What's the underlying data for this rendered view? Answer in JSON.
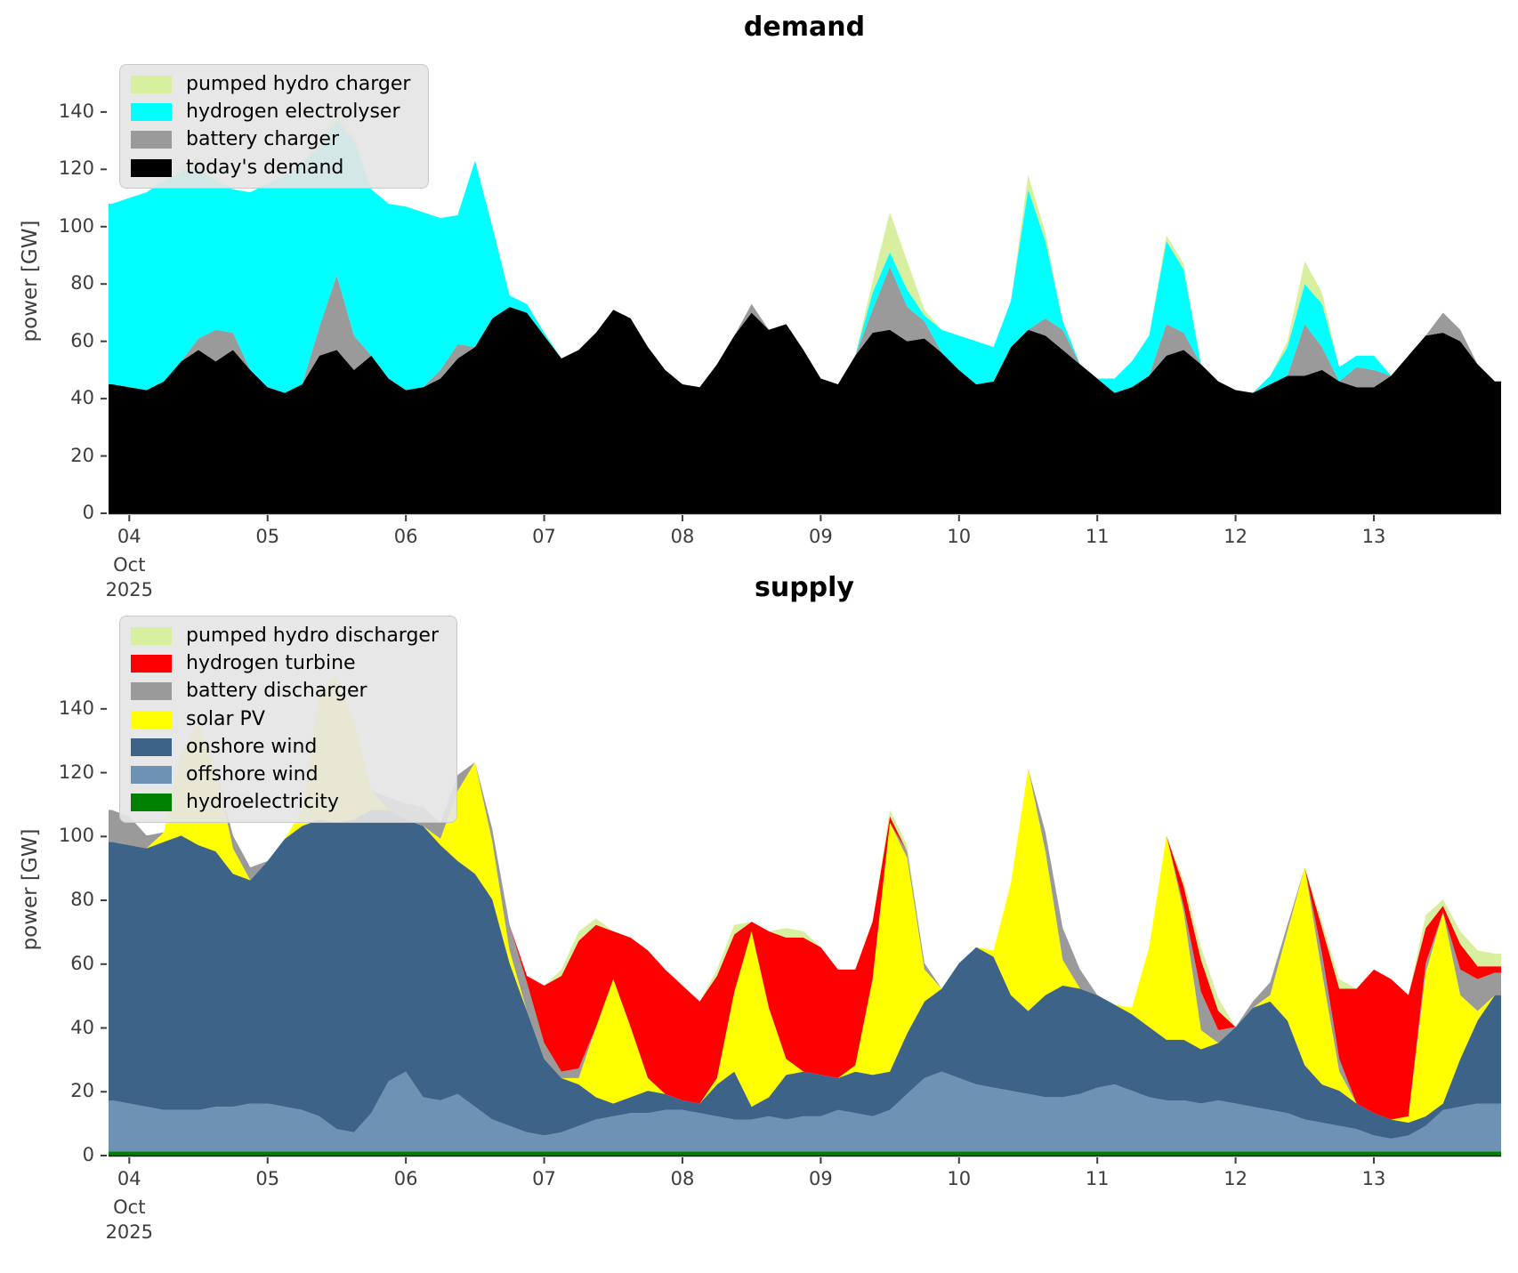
{
  "figure": {
    "background": "#ffffff",
    "text_color": "#3d3d3d",
    "month_label": "Oct",
    "year_label": "2025"
  },
  "chart_data": [
    {
      "id": "demand",
      "type": "area",
      "stacked": true,
      "title": "demand",
      "ylabel": "power [GW]",
      "xlabel": "",
      "grid": false,
      "legend_position": "upper left",
      "xlim": [
        3.85,
        13.92
      ],
      "ylim": [
        0,
        162
      ],
      "y_ticks": [
        0,
        20,
        40,
        60,
        80,
        100,
        120,
        140
      ],
      "x_ticks": [
        {
          "day": 4,
          "label": "04"
        },
        {
          "day": 5,
          "label": "05"
        },
        {
          "day": 6,
          "label": "06"
        },
        {
          "day": 7,
          "label": "07"
        },
        {
          "day": 8,
          "label": "08"
        },
        {
          "day": 9,
          "label": "09"
        },
        {
          "day": 10,
          "label": "10"
        },
        {
          "day": 11,
          "label": "11"
        },
        {
          "day": 12,
          "label": "12"
        },
        {
          "day": 13,
          "label": "13"
        }
      ],
      "x_points": {
        "start": 3.875,
        "step": 0.125,
        "count": 81,
        "unit": "day of October 2025"
      },
      "legend": [
        {
          "name": "pumped hydro charger",
          "color": "#d8ef9f"
        },
        {
          "name": "hydrogen electrolyser",
          "color": "#00ffff"
        },
        {
          "name": "battery charger",
          "color": "#9a9a9a"
        },
        {
          "name": "today's demand",
          "color": "#000000"
        }
      ],
      "series": [
        {
          "name": "today's demand",
          "color": "#000000",
          "values": [
            45,
            44,
            43,
            46,
            53,
            57,
            53,
            57,
            50,
            44,
            42,
            45,
            55,
            57,
            50,
            55,
            47,
            43,
            44,
            47,
            54,
            58,
            68,
            72,
            70,
            62,
            54,
            57,
            63,
            71,
            68,
            58,
            50,
            45,
            44,
            52,
            62,
            70,
            64,
            66,
            57,
            47,
            45,
            55,
            63,
            64,
            60,
            61,
            56,
            50,
            45,
            46,
            58,
            64,
            62,
            57,
            52,
            47,
            42,
            44,
            48,
            55,
            57,
            52,
            46,
            43,
            42,
            45,
            48,
            48,
            50,
            46,
            44,
            44,
            48,
            55,
            62,
            63,
            60,
            52,
            46
          ]
        },
        {
          "name": "battery charger",
          "color": "#9a9a9a",
          "values": [
            0,
            0,
            0,
            0,
            0,
            4,
            11,
            6,
            0,
            0,
            0,
            0,
            10,
            26,
            12,
            0,
            0,
            0,
            0,
            3,
            5,
            0,
            0,
            0,
            0,
            0,
            0,
            0,
            0,
            0,
            0,
            0,
            0,
            0,
            0,
            0,
            0,
            3,
            0,
            0,
            0,
            0,
            0,
            0,
            8,
            22,
            12,
            6,
            0,
            0,
            0,
            0,
            0,
            0,
            6,
            7,
            0,
            0,
            0,
            0,
            0,
            11,
            6,
            0,
            0,
            0,
            0,
            0,
            0,
            18,
            8,
            0,
            7,
            6,
            0,
            0,
            0,
            7,
            4,
            0,
            0
          ]
        },
        {
          "name": "hydrogen electrolyser",
          "color": "#00ffff",
          "values": [
            63,
            66,
            69,
            70,
            66,
            60,
            52,
            50,
            62,
            71,
            76,
            77,
            63,
            54,
            68,
            58,
            61,
            64,
            61,
            53,
            45,
            65,
            32,
            4,
            3,
            1,
            0,
            0,
            0,
            0,
            0,
            0,
            0,
            0,
            0,
            0,
            0,
            0,
            0,
            0,
            0,
            0,
            0,
            0,
            6,
            5,
            6,
            2,
            8,
            12,
            15,
            12,
            16,
            49,
            27,
            3,
            0,
            0,
            5,
            9,
            14,
            29,
            22,
            0,
            0,
            0,
            0,
            3,
            10,
            14,
            15,
            5,
            4,
            5,
            0,
            0,
            0,
            0,
            0,
            0,
            0
          ]
        },
        {
          "name": "pumped hydro charger",
          "color": "#d8ef9f",
          "values": [
            0,
            0,
            0,
            0,
            2,
            3,
            2,
            0,
            0,
            0,
            0,
            0,
            2,
            3,
            2,
            0,
            0,
            0,
            0,
            0,
            0,
            0,
            0,
            0,
            0,
            0,
            0,
            0,
            0,
            0,
            0,
            0,
            0,
            0,
            0,
            0,
            0,
            0,
            0,
            0,
            0,
            0,
            0,
            0,
            4,
            14,
            10,
            2,
            0,
            0,
            0,
            0,
            0,
            5,
            3,
            0,
            0,
            0,
            0,
            0,
            0,
            2,
            2,
            0,
            0,
            0,
            0,
            0,
            2,
            8,
            4,
            0,
            0,
            0,
            0,
            0,
            0,
            0,
            0,
            0,
            0
          ]
        }
      ]
    },
    {
      "id": "supply",
      "type": "area",
      "stacked": true,
      "title": "supply",
      "ylabel": "power [GW]",
      "xlabel": "",
      "grid": false,
      "legend_position": "upper left",
      "xlim": [
        3.85,
        13.92
      ],
      "ylim": [
        0,
        167
      ],
      "y_ticks": [
        0,
        20,
        40,
        60,
        80,
        100,
        120,
        140
      ],
      "x_ticks": [
        {
          "day": 4,
          "label": "04"
        },
        {
          "day": 5,
          "label": "05"
        },
        {
          "day": 6,
          "label": "06"
        },
        {
          "day": 7,
          "label": "07"
        },
        {
          "day": 8,
          "label": "08"
        },
        {
          "day": 9,
          "label": "09"
        },
        {
          "day": 10,
          "label": "10"
        },
        {
          "day": 11,
          "label": "11"
        },
        {
          "day": 12,
          "label": "12"
        },
        {
          "day": 13,
          "label": "13"
        }
      ],
      "x_points": {
        "start": 3.875,
        "step": 0.125,
        "count": 81,
        "unit": "day of October 2025"
      },
      "legend": [
        {
          "name": "pumped hydro discharger",
          "color": "#d8ef9f"
        },
        {
          "name": "hydrogen turbine",
          "color": "#ff0000"
        },
        {
          "name": "battery discharger",
          "color": "#9a9a9a"
        },
        {
          "name": "solar PV",
          "color": "#ffff00"
        },
        {
          "name": "onshore wind",
          "color": "#3d6488"
        },
        {
          "name": "offshore wind",
          "color": "#6d92b4"
        },
        {
          "name": "hydroelectricity",
          "color": "#008000"
        }
      ],
      "series": [
        {
          "name": "hydroelectricity",
          "color": "#008000",
          "constant": 1.3
        },
        {
          "name": "offshore wind",
          "color": "#6d92b4",
          "values": [
            16,
            15,
            14,
            13,
            13,
            13,
            14,
            14,
            15,
            15,
            14,
            13,
            11,
            7,
            6,
            12,
            22,
            25,
            17,
            16,
            18,
            14,
            10,
            8,
            6,
            5,
            6,
            8,
            10,
            11,
            12,
            12,
            13,
            13,
            12,
            11,
            10,
            10,
            11,
            10,
            11,
            11,
            13,
            12,
            11,
            13,
            18,
            23,
            25,
            23,
            21,
            20,
            19,
            18,
            17,
            17,
            18,
            20,
            21,
            19,
            17,
            16,
            16,
            15,
            16,
            15,
            14,
            13,
            12,
            10,
            9,
            8,
            7,
            5,
            4,
            5,
            8,
            13,
            14,
            15,
            15
          ]
        },
        {
          "name": "onshore wind",
          "color": "#3d6488",
          "values": [
            81,
            81,
            81,
            84,
            86,
            83,
            80,
            73,
            70,
            76,
            84,
            89,
            93,
            96,
            98,
            95,
            85,
            79,
            85,
            80,
            73,
            73,
            69,
            51,
            38,
            24,
            17,
            13,
            7,
            4,
            5,
            7,
            5,
            3,
            3,
            10,
            15,
            4,
            6,
            14,
            14,
            13,
            10,
            13,
            13,
            12,
            19,
            24,
            26,
            36,
            43,
            41,
            30,
            26,
            32,
            35,
            33,
            29,
            25,
            24,
            22,
            19,
            19,
            17,
            18,
            24,
            31,
            34,
            29,
            17,
            12,
            11,
            8,
            7,
            6,
            4,
            3,
            2,
            15,
            26,
            34
          ]
        },
        {
          "name": "solar PV",
          "color": "#ffff00",
          "values": [
            0,
            0,
            0,
            3,
            26,
            38,
            26,
            8,
            0,
            0,
            0,
            5,
            40,
            46,
            30,
            6,
            0,
            0,
            0,
            2,
            22,
            35,
            18,
            4,
            0,
            0,
            0,
            2,
            22,
            39,
            22,
            4,
            0,
            0,
            0,
            2,
            25,
            55,
            28,
            5,
            0,
            0,
            0,
            2,
            30,
            78,
            55,
            10,
            0,
            0,
            0,
            2,
            35,
            76,
            45,
            8,
            0,
            0,
            0,
            2,
            25,
            64,
            40,
            6,
            0,
            0,
            0,
            2,
            28,
            62,
            35,
            6,
            0,
            0,
            0,
            2,
            45,
            60,
            20,
            3,
            0
          ]
        },
        {
          "name": "battery discharger",
          "color": "#9a9a9a",
          "values": [
            10,
            9,
            4,
            0,
            0,
            0,
            0,
            4,
            4,
            0,
            0,
            0,
            0,
            0,
            0,
            0,
            4,
            5,
            6,
            5,
            5,
            0,
            4,
            8,
            9,
            5,
            2,
            3,
            0,
            0,
            0,
            0,
            0,
            0,
            0,
            0,
            0,
            0,
            0,
            0,
            0,
            0,
            0,
            0,
            0,
            0,
            2,
            2,
            0,
            0,
            0,
            0,
            0,
            0,
            6,
            10,
            6,
            0,
            0,
            0,
            0,
            0,
            2,
            12,
            4,
            0,
            2,
            4,
            2,
            0,
            6,
            4,
            0,
            0,
            0,
            0,
            3,
            0,
            8,
            10,
            7
          ]
        },
        {
          "name": "hydrogen turbine",
          "color": "#ff0000",
          "values": [
            0,
            0,
            0,
            0,
            0,
            0,
            0,
            0,
            0,
            0,
            0,
            0,
            0,
            0,
            0,
            0,
            0,
            0,
            0,
            0,
            0,
            0,
            0,
            0,
            2,
            18,
            30,
            40,
            32,
            15,
            28,
            40,
            39,
            36,
            32,
            32,
            18,
            3,
            24,
            38,
            42,
            40,
            34,
            30,
            18,
            2,
            0,
            0,
            0,
            0,
            0,
            0,
            0,
            0,
            0,
            0,
            0,
            0,
            0,
            0,
            0,
            0,
            6,
            10,
            6,
            0,
            0,
            0,
            0,
            0,
            8,
            22,
            36,
            45,
            44,
            38,
            11,
            2,
            8,
            4,
            2
          ]
        },
        {
          "name": "pumped hydro discharger",
          "color": "#d8ef9f",
          "values": [
            0,
            0,
            0,
            0,
            0,
            0,
            0,
            0,
            0,
            0,
            0,
            0,
            0,
            0,
            0,
            0,
            0,
            0,
            0,
            0,
            0,
            0,
            0,
            0,
            0,
            0,
            2,
            3,
            2,
            0,
            0,
            0,
            0,
            0,
            0,
            2,
            3,
            0,
            0,
            3,
            2,
            0,
            0,
            0,
            0,
            2,
            2,
            0,
            0,
            0,
            0,
            0,
            0,
            0,
            0,
            0,
            0,
            0,
            0,
            0,
            0,
            0,
            2,
            4,
            4,
            0,
            0,
            0,
            0,
            0,
            2,
            3,
            0,
            0,
            0,
            0,
            4,
            2,
            4,
            5,
            4
          ]
        }
      ]
    }
  ]
}
